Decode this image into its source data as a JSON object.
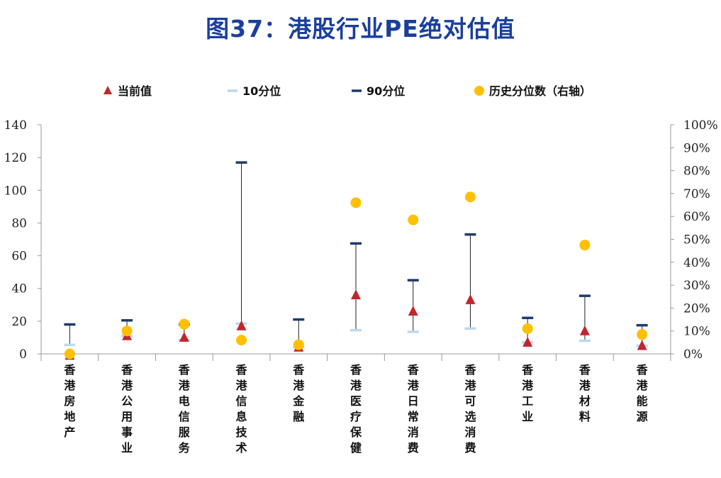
{
  "title": "图37：港股行业PE绝对估值",
  "chart_data": {
    "type": "scatter",
    "categories": [
      "香港房地产",
      "香港公用事业",
      "香港电信服务",
      "香港信息技术",
      "香港金融",
      "香港医疗保健",
      "香港日常消费",
      "香港可选消费",
      "香港工业",
      "香港材料",
      "香港能源"
    ],
    "series": [
      {
        "name": "当前值",
        "axis": "left",
        "marker": "triangle",
        "color": "#c0272d",
        "values": [
          -1,
          11,
          10,
          17,
          4,
          36,
          26,
          33,
          7,
          14,
          5
        ]
      },
      {
        "name": "10分位",
        "axis": "left",
        "marker": "dash",
        "color": "#bdd7ee",
        "values": [
          5.5,
          11,
          8.5,
          18.5,
          4,
          14.5,
          13.5,
          15.5,
          7,
          8,
          5
        ]
      },
      {
        "name": "90分位",
        "axis": "left",
        "marker": "dash",
        "color": "#1f3a6e",
        "values": [
          18,
          20.5,
          18,
          117,
          21,
          67.5,
          45,
          73,
          22,
          35.5,
          17.5
        ]
      },
      {
        "name": "历史分位数（右轴）",
        "axis": "right",
        "marker": "circle",
        "color": "#ffc000",
        "values": [
          0.0,
          0.1,
          0.13,
          0.06,
          0.04,
          0.66,
          0.585,
          0.685,
          0.11,
          0.475,
          0.085
        ]
      }
    ],
    "ylim_left": [
      0,
      140
    ],
    "yticks_left": [
      "0",
      "20",
      "40",
      "60",
      "80",
      "100",
      "120",
      "140"
    ],
    "ylim_right": [
      0,
      1
    ],
    "yticks_right": [
      "0%",
      "10%",
      "20%",
      "30%",
      "40%",
      "50%",
      "60%",
      "70%",
      "80%",
      "90%",
      "100%"
    ],
    "legend_position": "top",
    "grid": false
  }
}
